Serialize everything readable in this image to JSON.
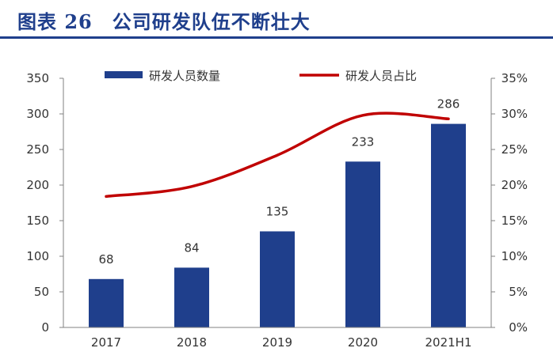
{
  "figure": {
    "title": "图表 26　公司研发队伍不断壮大"
  },
  "colors": {
    "title": "#1f3f8c",
    "bar": "#1f3f8c",
    "line": "#c00000",
    "axis": "#808080",
    "text": "#333333"
  },
  "chart_data": {
    "type": "bar",
    "categories": [
      "2017",
      "2018",
      "2019",
      "2020",
      "2021H1"
    ],
    "series": [
      {
        "name": "研发人员数量",
        "type": "bar",
        "axis": "left",
        "values": [
          68,
          84,
          135,
          233,
          286
        ]
      },
      {
        "name": "研发人员占比",
        "type": "line",
        "axis": "right",
        "values": [
          18.4,
          19.8,
          24.2,
          29.8,
          29.3
        ]
      }
    ],
    "y_left": {
      "min": 0,
      "max": 350,
      "ticks": [
        "0",
        "50",
        "100",
        "150",
        "200",
        "250",
        "300",
        "350"
      ]
    },
    "y_right": {
      "min": 0,
      "max": 35,
      "ticks": [
        "0%",
        "5%",
        "10%",
        "15%",
        "20%",
        "25%",
        "30%",
        "35%"
      ]
    },
    "data_labels": [
      "68",
      "84",
      "135",
      "233",
      "286"
    ],
    "legend_position": "top",
    "grid": false
  }
}
